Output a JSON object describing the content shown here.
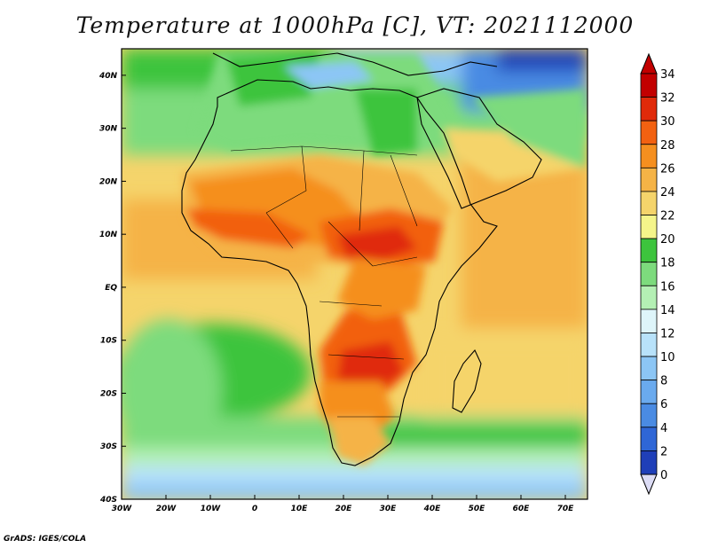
{
  "title": "Temperature at 1000hPa [C], VT: 2021112000",
  "credit": "GrADS: IGES/COLA",
  "map": {
    "region": "Africa",
    "field": "Temperature at 1000hPa",
    "units": "C",
    "lon_range": [
      -30,
      75
    ],
    "lat_range": [
      -40,
      45
    ],
    "lon_ticks": [
      {
        "value": -30,
        "label": "30W"
      },
      {
        "value": -20,
        "label": "20W"
      },
      {
        "value": -10,
        "label": "10W"
      },
      {
        "value": 0,
        "label": "0"
      },
      {
        "value": 10,
        "label": "10E"
      },
      {
        "value": 20,
        "label": "20E"
      },
      {
        "value": 30,
        "label": "30E"
      },
      {
        "value": 40,
        "label": "40E"
      },
      {
        "value": 50,
        "label": "50E"
      },
      {
        "value": 60,
        "label": "60E"
      },
      {
        "value": 70,
        "label": "70E"
      }
    ],
    "lat_ticks": [
      {
        "value": 40,
        "label": "40N"
      },
      {
        "value": 30,
        "label": "30N"
      },
      {
        "value": 20,
        "label": "20N"
      },
      {
        "value": 10,
        "label": "10N"
      },
      {
        "value": 0,
        "label": "EQ"
      },
      {
        "value": -10,
        "label": "10S"
      },
      {
        "value": -20,
        "label": "20S"
      },
      {
        "value": -30,
        "label": "30S"
      },
      {
        "value": -40,
        "label": "40S"
      }
    ]
  },
  "colorbar": {
    "levels": [
      "0",
      "2",
      "4",
      "6",
      "8",
      "10",
      "12",
      "14",
      "16",
      "18",
      "20",
      "22",
      "24",
      "26",
      "28",
      "30",
      "32",
      "34"
    ],
    "colors": [
      "#0d0d7a",
      "#1f3fb8",
      "#2f66d6",
      "#4a8be3",
      "#6aaaee",
      "#8cc6f5",
      "#b8e2fa",
      "#def5fa",
      "#b4f0b4",
      "#7ddb7d",
      "#3dc43d",
      "#f5f58a",
      "#f5d46b",
      "#f5b346",
      "#f58f1f",
      "#f26111",
      "#e02a0a",
      "#c20000"
    ],
    "under_color": "#dcdcf5",
    "over_color": "#c20000"
  }
}
